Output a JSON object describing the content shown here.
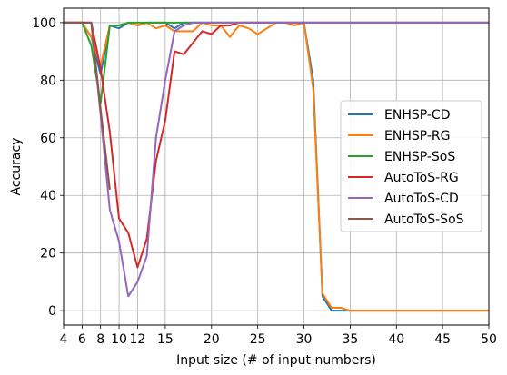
{
  "chart_data": {
    "type": "line",
    "xlabel": "Input size (# of input numbers)",
    "ylabel": "Accuracy",
    "xlim": [
      4,
      50
    ],
    "ylim": [
      -5,
      105
    ],
    "xticks": [
      4,
      6,
      8,
      10,
      12,
      15,
      20,
      25,
      30,
      35,
      40,
      45,
      50
    ],
    "xtick_labels": [
      "4",
      "6",
      "8",
      "10",
      "12",
      "15",
      "20",
      "25",
      "30",
      "35",
      "40",
      "45",
      "50"
    ],
    "yticks": [
      0,
      20,
      40,
      60,
      80,
      100
    ],
    "ytick_labels": [
      "0",
      "20",
      "40",
      "60",
      "80",
      "100"
    ],
    "grid": true,
    "legend_position": "center-right",
    "series": [
      {
        "name": "ENHSP-CD",
        "color": "#1f77b4",
        "x": [
          4,
          5,
          6,
          7,
          8,
          9,
          10,
          11,
          12,
          13,
          14,
          15,
          16,
          17,
          18,
          19,
          20,
          21,
          22,
          23,
          24,
          25,
          26,
          27,
          28,
          29,
          30,
          31,
          32,
          33,
          34,
          35,
          36,
          37,
          38,
          39,
          40,
          41,
          42,
          43,
          44,
          45,
          46,
          47,
          48,
          49,
          50
        ],
        "y": [
          100,
          100,
          100,
          95,
          82,
          99,
          98,
          100,
          99,
          100,
          100,
          100,
          98,
          100,
          100,
          100,
          100,
          100,
          100,
          100,
          100,
          100,
          100,
          100,
          100,
          100,
          100,
          80,
          5,
          0,
          0,
          0,
          0,
          0,
          0,
          0,
          0,
          0,
          0,
          0,
          0,
          0,
          0,
          0,
          0,
          0,
          0
        ]
      },
      {
        "name": "ENHSP-RG",
        "color": "#ff7f0e",
        "x": [
          4,
          5,
          6,
          7,
          8,
          9,
          10,
          11,
          12,
          13,
          14,
          15,
          16,
          17,
          18,
          19,
          20,
          21,
          22,
          23,
          24,
          25,
          26,
          27,
          28,
          29,
          30,
          31,
          32,
          33,
          34,
          35,
          36,
          37,
          38,
          39,
          40,
          41,
          42,
          43,
          44,
          45,
          46,
          47,
          48,
          49,
          50
        ],
        "y": [
          100,
          100,
          100,
          95,
          85,
          99,
          99,
          100,
          99,
          100,
          98,
          99,
          97,
          97,
          97,
          100,
          99,
          99,
          95,
          99,
          98,
          96,
          98,
          100,
          100,
          99,
          100,
          77,
          6,
          1,
          1,
          0,
          0,
          0,
          0,
          0,
          0,
          0,
          0,
          0,
          0,
          0,
          0,
          0,
          0,
          0,
          0
        ]
      },
      {
        "name": "ENHSP-SoS",
        "color": "#2ca02c",
        "x": [
          4,
          5,
          6,
          7,
          8,
          9,
          10,
          11,
          12,
          13,
          14,
          15,
          16,
          17,
          18,
          19,
          20,
          21,
          22,
          23,
          24,
          25,
          26,
          27,
          28,
          29,
          30,
          31,
          32,
          33,
          34,
          35,
          36,
          37,
          38,
          39,
          40,
          41,
          42,
          43,
          44,
          45,
          46,
          47,
          48,
          49,
          50
        ],
        "y": [
          100,
          100,
          100,
          92,
          72,
          99,
          99,
          100,
          100,
          100,
          100,
          100,
          100,
          100,
          100,
          100,
          100,
          100,
          100,
          100,
          100,
          100,
          100,
          100,
          100,
          100,
          100,
          100,
          100,
          100,
          100,
          100,
          100,
          100,
          100,
          100,
          100,
          100,
          100,
          100,
          100,
          100,
          100,
          100,
          100,
          100,
          100
        ]
      },
      {
        "name": "AutoToS-RG",
        "color": "#d62728",
        "x": [
          4,
          5,
          6,
          7,
          8,
          9,
          10,
          11,
          12,
          13,
          14,
          15,
          16,
          17,
          18,
          19,
          20,
          21,
          22,
          23,
          24,
          25,
          26,
          27,
          28,
          29,
          30,
          31,
          32,
          33,
          34,
          35,
          36,
          37,
          38,
          39,
          40,
          41,
          42,
          43,
          44,
          45,
          46,
          47,
          48,
          49,
          50
        ],
        "y": [
          100,
          100,
          100,
          100,
          84,
          62,
          32,
          27,
          15,
          25,
          52,
          66,
          90,
          89,
          93,
          97,
          96,
          99,
          99,
          100,
          100,
          100,
          100,
          100,
          100,
          100,
          100,
          100,
          100,
          100,
          100,
          100,
          100,
          100,
          100,
          100,
          100,
          100,
          100,
          100,
          100,
          100,
          100,
          100,
          100,
          100,
          100
        ]
      },
      {
        "name": "AutoToS-CD",
        "color": "#9467bd",
        "x": [
          4,
          5,
          6,
          7,
          8,
          9,
          10,
          11,
          12,
          13,
          14,
          15,
          16,
          17,
          18,
          19,
          20,
          21,
          22,
          23,
          24,
          25,
          26,
          27,
          28,
          29,
          30,
          31,
          32,
          33,
          34,
          35,
          36,
          37,
          38,
          39,
          40,
          41,
          42,
          43,
          44,
          45,
          46,
          47,
          48,
          49,
          50
        ],
        "y": [
          100,
          100,
          100,
          100,
          68,
          35,
          24,
          5,
          10,
          19,
          60,
          80,
          97,
          99,
          100,
          100,
          100,
          100,
          100,
          100,
          100,
          100,
          100,
          100,
          100,
          100,
          100,
          100,
          100,
          100,
          100,
          100,
          100,
          100,
          100,
          100,
          100,
          100,
          100,
          100,
          100,
          100,
          100,
          100,
          100,
          100,
          100
        ]
      },
      {
        "name": "AutoToS-SoS",
        "color": "#8c564b",
        "x": [
          4,
          5,
          6,
          7,
          8,
          9
        ],
        "y": [
          100,
          100,
          100,
          100,
          70,
          42
        ]
      }
    ]
  }
}
